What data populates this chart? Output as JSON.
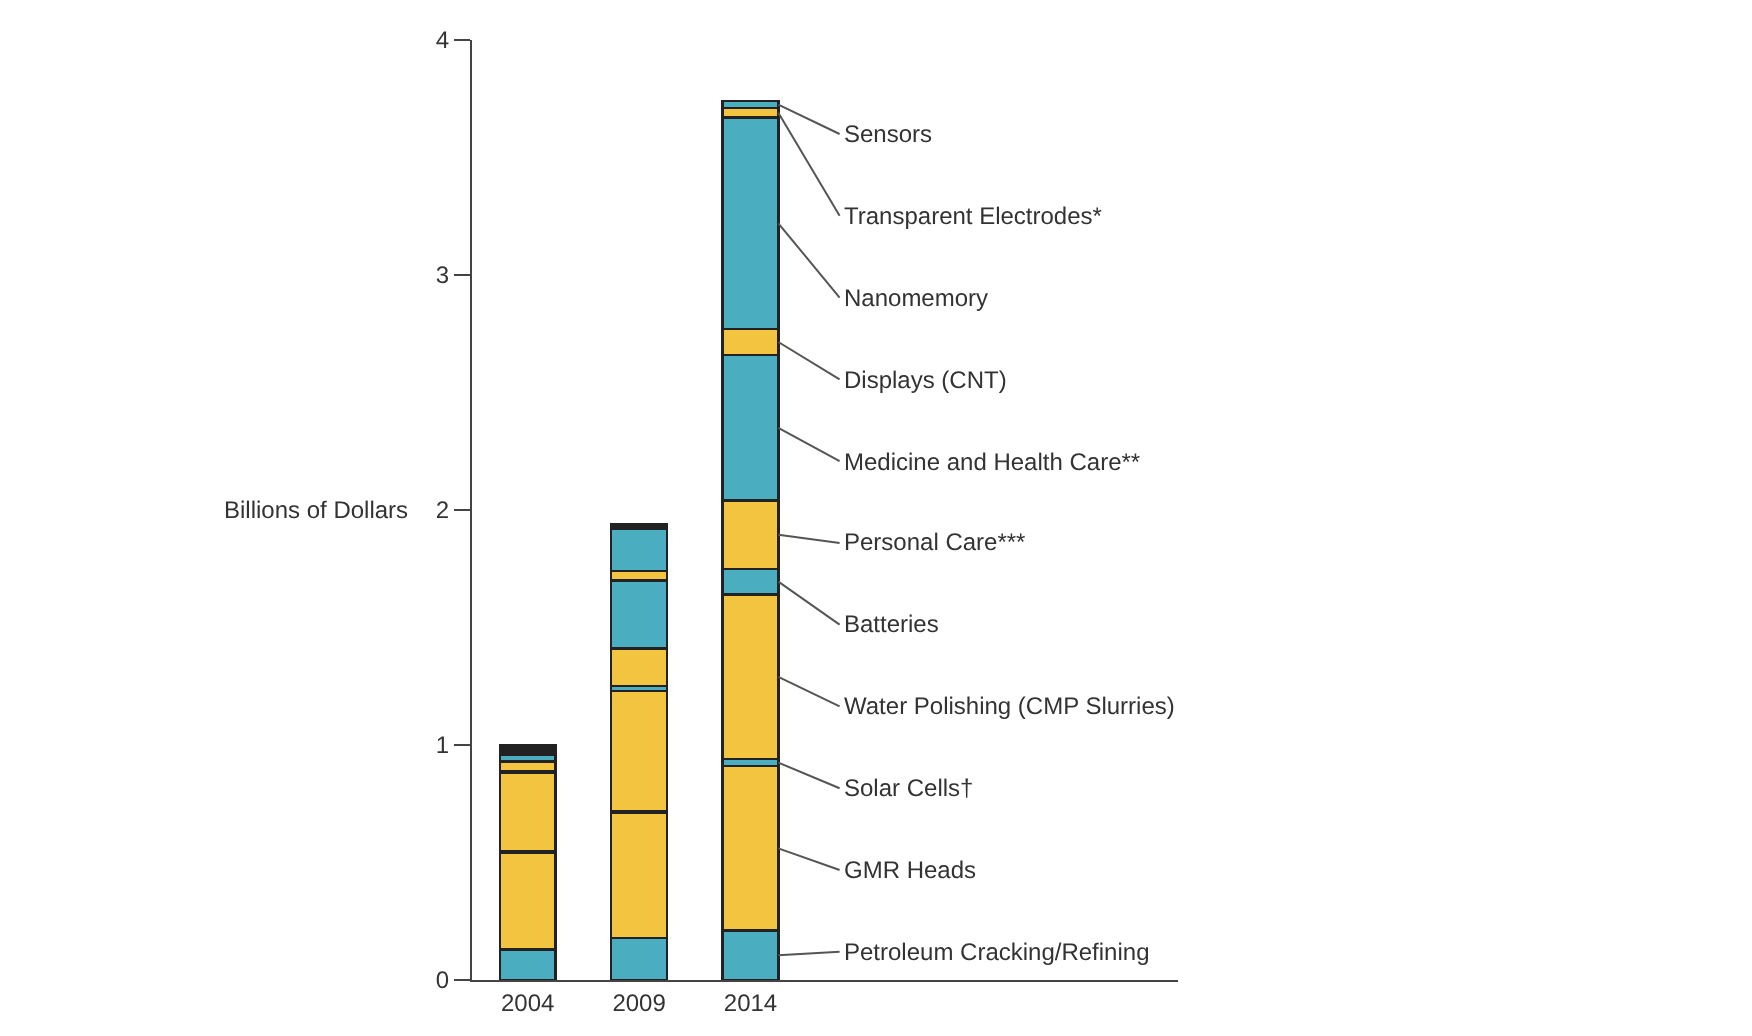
{
  "chart_data": {
    "type": "bar",
    "stacked": true,
    "ylabel": "Billions of Dollars",
    "categories": [
      "2004",
      "2009",
      "2014"
    ],
    "ylim": [
      0,
      4
    ],
    "yticks": [
      0,
      1,
      2,
      3,
      4
    ],
    "grid": false,
    "legend": false,
    "series": [
      {
        "name": "Petroleum Cracking/Refining",
        "color": "#4aaec0",
        "values": [
          0.13,
          0.18,
          0.21
        ]
      },
      {
        "name": "GMR Heads",
        "color": "#f2c440",
        "values": [
          0.41,
          0.53,
          0.7
        ]
      },
      {
        "name": "Solar Cells†",
        "color": "#4aaec0",
        "values": [
          0.01,
          0.01,
          0.03
        ]
      },
      {
        "name": "Water Polishing (CMP Slurries)",
        "color": "#f2c440",
        "values": [
          0.33,
          0.51,
          0.7
        ]
      },
      {
        "name": "Batteries",
        "color": "#4aaec0",
        "values": [
          0.01,
          0.02,
          0.11
        ]
      },
      {
        "name": "Personal Care***",
        "color": "#f2c440",
        "values": [
          0.04,
          0.16,
          0.29
        ]
      },
      {
        "name": "Medicine and Health Care**",
        "color": "#4aaec0",
        "values": [
          0.03,
          0.29,
          0.62
        ]
      },
      {
        "name": "Displays (CNT)",
        "color": "#f2c440",
        "values": [
          0.01,
          0.04,
          0.11
        ]
      },
      {
        "name": "Nanomemory",
        "color": "#4aaec0",
        "values": [
          0.01,
          0.18,
          0.9
        ]
      },
      {
        "name": "Transparent Electrodes*",
        "color": "#f2c440",
        "values": [
          0.01,
          0.01,
          0.04
        ]
      },
      {
        "name": "Sensors",
        "color": "#4aaec0",
        "values": [
          0.01,
          0.01,
          0.03
        ]
      }
    ]
  }
}
